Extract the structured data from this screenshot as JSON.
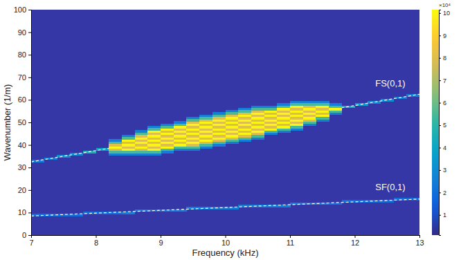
{
  "chart_data": {
    "type": "heatmap",
    "x_label": "Frequency (kHz)",
    "y_label": "Wavenumber (1/m)",
    "xlim": [
      7,
      13
    ],
    "xticks": [
      7,
      8,
      9,
      10,
      11,
      12,
      13
    ],
    "ylim": [
      0,
      100
    ],
    "yticks": [
      0,
      10,
      20,
      30,
      40,
      50,
      60,
      70,
      80,
      90,
      100
    ],
    "grid": false,
    "colorbar": {
      "range": [
        0.1,
        10.15
      ],
      "ticks": [
        1,
        2,
        3,
        4,
        5,
        6,
        7,
        8,
        9,
        10
      ],
      "label": "×10⁴"
    },
    "cells": [
      {
        "x": 8.3,
        "y": [
          36,
          42
        ],
        "values": [
          2.5,
          5.5,
          8,
          10,
          8,
          5.5,
          2.5
        ]
      },
      {
        "x": 8.5,
        "y": [
          36,
          44
        ],
        "values": [
          2.5,
          5.5,
          10,
          8,
          10,
          8,
          10,
          5.5,
          2.5
        ]
      },
      {
        "x": 8.7,
        "y": [
          36,
          46
        ],
        "values": [
          2.5,
          5.5,
          8,
          10,
          8,
          10,
          8,
          10,
          8,
          5.5,
          2.5
        ]
      },
      {
        "x": 8.9,
        "y": [
          36,
          48
        ],
        "values": [
          2.5,
          5.5,
          10,
          8,
          10,
          8,
          10,
          8,
          10,
          8,
          10,
          5.5,
          2.5
        ]
      },
      {
        "x": 9.1,
        "y": [
          37,
          49
        ],
        "values": [
          2.5,
          5.5,
          10,
          8,
          10,
          8,
          10,
          8,
          10,
          8,
          10,
          5.5,
          2.5
        ]
      },
      {
        "x": 9.3,
        "y": [
          38,
          50
        ],
        "values": [
          2.5,
          5.5,
          10,
          8,
          10,
          8,
          10,
          8,
          10,
          8,
          10,
          5.5,
          2.5
        ]
      },
      {
        "x": 9.5,
        "y": [
          38,
          52
        ],
        "values": [
          2.5,
          5.5,
          8,
          10,
          8,
          10,
          8,
          10,
          8,
          10,
          8,
          10,
          8,
          5.5,
          2.5
        ]
      },
      {
        "x": 9.7,
        "y": [
          39,
          53
        ],
        "values": [
          2.5,
          5.5,
          8,
          10,
          8,
          10,
          8,
          10,
          8,
          10,
          8,
          10,
          8,
          5.5,
          2.5
        ]
      },
      {
        "x": 9.9,
        "y": [
          40,
          54
        ],
        "values": [
          2.5,
          5.5,
          8,
          10,
          8,
          10,
          8,
          10,
          8,
          10,
          8,
          10,
          8,
          5.5,
          2.5
        ]
      },
      {
        "x": 10.1,
        "y": [
          41,
          55
        ],
        "values": [
          2.5,
          5.5,
          8,
          10,
          8,
          10,
          8,
          10,
          8,
          10,
          8,
          10,
          8,
          5.5,
          2.5
        ]
      },
      {
        "x": 10.3,
        "y": [
          42,
          56
        ],
        "values": [
          2.5,
          5.5,
          8,
          10,
          8,
          10,
          8,
          10,
          8,
          10,
          8,
          10,
          8,
          5.5,
          2.5
        ]
      },
      {
        "x": 10.5,
        "y": [
          43,
          57
        ],
        "values": [
          2.5,
          5.5,
          8,
          10,
          8,
          10,
          8,
          10,
          8,
          10,
          8,
          10,
          8,
          5.5,
          2.5
        ]
      },
      {
        "x": 10.7,
        "y": [
          45,
          57
        ],
        "values": [
          2.5,
          5.5,
          10,
          8,
          10,
          8,
          10,
          8,
          10,
          8,
          10,
          5.5,
          2.5
        ]
      },
      {
        "x": 10.9,
        "y": [
          46,
          58
        ],
        "values": [
          2.5,
          5.5,
          10,
          8,
          10,
          8,
          10,
          8,
          10,
          8,
          10,
          5.5,
          2.5
        ]
      },
      {
        "x": 11.1,
        "y": [
          47,
          59
        ],
        "values": [
          2.5,
          5.5,
          10,
          8,
          10,
          8,
          10,
          8,
          10,
          8,
          10,
          5.5,
          2.5
        ]
      },
      {
        "x": 11.3,
        "y": [
          49,
          59
        ],
        "values": [
          2.5,
          5.5,
          8,
          10,
          8,
          10,
          8,
          10,
          8,
          5.5,
          2.5
        ]
      },
      {
        "x": 11.5,
        "y": [
          51,
          59
        ],
        "values": [
          2.5,
          5.5,
          10,
          8,
          10,
          8,
          10,
          5.5,
          2.5
        ]
      },
      {
        "x": 11.7,
        "y": [
          54,
          58
        ],
        "values": [
          2.5,
          5.5,
          10,
          5.5,
          2.5
        ]
      },
      {
        "x": 7.1,
        "y": [
          33,
          33
        ],
        "values": [
          2.5
        ]
      },
      {
        "x": 7.3,
        "y": [
          34,
          34
        ],
        "values": [
          2.5
        ]
      },
      {
        "x": 7.5,
        "y": [
          35,
          35
        ],
        "values": [
          3
        ]
      },
      {
        "x": 7.7,
        "y": [
          36,
          36
        ],
        "values": [
          3
        ]
      },
      {
        "x": 7.9,
        "y": [
          37,
          37
        ],
        "values": [
          4.5
        ]
      },
      {
        "x": 8.1,
        "y": [
          38,
          38
        ],
        "values": [
          4
        ]
      },
      {
        "x": 11.9,
        "y": [
          57,
          57
        ],
        "values": [
          4.5
        ]
      },
      {
        "x": 12.1,
        "y": [
          58,
          58
        ],
        "values": [
          3.5
        ]
      },
      {
        "x": 12.3,
        "y": [
          59,
          59
        ],
        "values": [
          3
        ]
      },
      {
        "x": 12.5,
        "y": [
          60,
          60
        ],
        "values": [
          3
        ]
      },
      {
        "x": 12.7,
        "y": [
          61,
          61
        ],
        "values": [
          2.5
        ]
      },
      {
        "x": 12.9,
        "y": [
          62,
          62
        ],
        "values": [
          2.5
        ]
      },
      {
        "x": 7.1,
        "y": [
          9,
          9
        ],
        "values": [
          2
        ]
      },
      {
        "x": 7.3,
        "y": [
          9,
          9
        ],
        "values": [
          2
        ]
      },
      {
        "x": 7.5,
        "y": [
          9,
          9
        ],
        "values": [
          2
        ]
      },
      {
        "x": 7.7,
        "y": [
          9,
          9
        ],
        "values": [
          2
        ]
      },
      {
        "x": 7.9,
        "y": [
          10,
          10
        ],
        "values": [
          2
        ]
      },
      {
        "x": 8.1,
        "y": [
          10,
          10
        ],
        "values": [
          2
        ]
      },
      {
        "x": 8.3,
        "y": [
          10,
          10
        ],
        "values": [
          2
        ]
      },
      {
        "x": 8.5,
        "y": [
          10,
          10
        ],
        "values": [
          2.5
        ]
      },
      {
        "x": 8.7,
        "y": [
          11,
          11
        ],
        "values": [
          2.5
        ]
      },
      {
        "x": 8.9,
        "y": [
          11,
          11
        ],
        "values": [
          2.5
        ]
      },
      {
        "x": 9.1,
        "y": [
          11,
          11
        ],
        "values": [
          2.5
        ]
      },
      {
        "x": 9.3,
        "y": [
          11,
          11
        ],
        "values": [
          2.5
        ]
      },
      {
        "x": 9.5,
        "y": [
          12,
          12
        ],
        "values": [
          2.5
        ]
      },
      {
        "x": 9.7,
        "y": [
          12,
          12
        ],
        "values": [
          2.5
        ]
      },
      {
        "x": 9.9,
        "y": [
          12,
          12
        ],
        "values": [
          2.5
        ]
      },
      {
        "x": 10.1,
        "y": [
          12,
          12
        ],
        "values": [
          2.5
        ]
      },
      {
        "x": 10.3,
        "y": [
          13,
          13
        ],
        "values": [
          2.5
        ]
      },
      {
        "x": 10.5,
        "y": [
          13,
          13
        ],
        "values": [
          2.5
        ]
      },
      {
        "x": 10.7,
        "y": [
          13,
          13
        ],
        "values": [
          2.5
        ]
      },
      {
        "x": 10.9,
        "y": [
          13,
          13
        ],
        "values": [
          2.5
        ]
      },
      {
        "x": 11.1,
        "y": [
          14,
          14
        ],
        "values": [
          2.5
        ]
      },
      {
        "x": 11.3,
        "y": [
          14,
          14
        ],
        "values": [
          2.5
        ]
      },
      {
        "x": 11.5,
        "y": [
          14,
          14
        ],
        "values": [
          2.5
        ]
      },
      {
        "x": 11.7,
        "y": [
          14,
          14
        ],
        "values": [
          2
        ]
      },
      {
        "x": 11.9,
        "y": [
          15,
          15
        ],
        "values": [
          2
        ]
      },
      {
        "x": 12.1,
        "y": [
          15,
          15
        ],
        "values": [
          2
        ]
      },
      {
        "x": 12.3,
        "y": [
          15,
          15
        ],
        "values": [
          2
        ]
      },
      {
        "x": 12.5,
        "y": [
          15,
          15
        ],
        "values": [
          2
        ]
      },
      {
        "x": 12.7,
        "y": [
          16,
          16
        ],
        "values": [
          2
        ]
      },
      {
        "x": 12.9,
        "y": [
          16,
          16
        ],
        "values": [
          2
        ]
      }
    ],
    "series": [
      {
        "color": "#ffffff",
        "line_style": "dashed",
        "x": [
          7,
          13
        ],
        "values": [
          32.5,
          62.5
        ]
      },
      {
        "color": "#ffffff",
        "line_style": "dashed",
        "x": [
          7,
          13
        ],
        "values": [
          8.5,
          16
        ]
      }
    ],
    "annotations": [
      {
        "text": "FS(0,1)",
        "x": 12.55,
        "y": 66
      },
      {
        "text": "SF(0,1)",
        "x": 12.55,
        "y": 20
      }
    ]
  }
}
